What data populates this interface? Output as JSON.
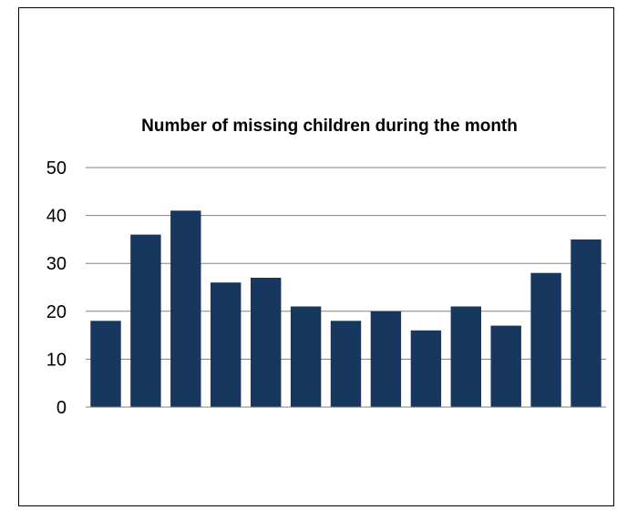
{
  "chart_data": {
    "type": "bar",
    "title": "Number of missing children during the month",
    "xlabel": "",
    "ylabel": "",
    "categories": [
      "",
      "",
      "",
      "",
      "",
      "",
      "",
      "",
      "",
      "",
      "",
      "",
      ""
    ],
    "values": [
      18,
      36,
      41,
      26,
      27,
      21,
      18,
      20,
      16,
      21,
      17,
      28,
      35
    ],
    "ylim": [
      0,
      50
    ],
    "yticks": [
      "0",
      "10",
      "20",
      "30",
      "40",
      "50"
    ],
    "grid": true,
    "legend": "none",
    "colors": {
      "bar": "#17375e",
      "grid": "#808080",
      "axis": "#808080"
    }
  }
}
